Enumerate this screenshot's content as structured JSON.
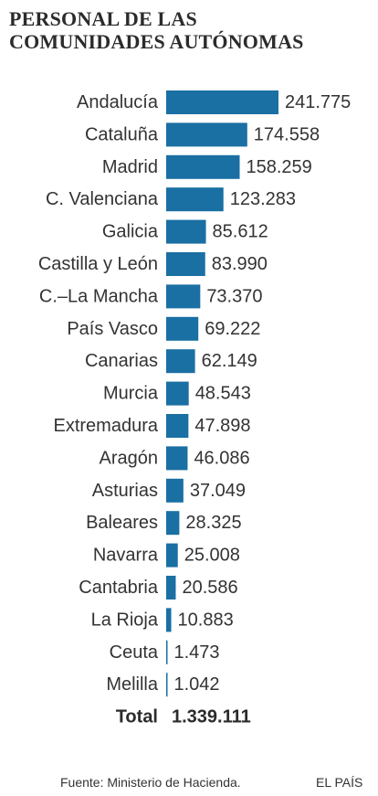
{
  "title_lines": [
    "PERSONAL DE LAS",
    "COMUNIDADES AUTÓNOMAS"
  ],
  "source": "Fuente: Ministerio de Hacienda.",
  "brand": "EL PAÍS",
  "colors": {
    "bar": "#1a6fa3",
    "text": "#333333",
    "title": "#2b2b2b"
  },
  "chart_data": {
    "type": "bar",
    "orientation": "horizontal",
    "title": "PERSONAL DE LAS COMUNIDADES AUTÓNOMAS",
    "categories": [
      "Andalucía",
      "Cataluña",
      "Madrid",
      "C. Valenciana",
      "Galicia",
      "Castilla y León",
      "C.–La Mancha",
      "País Vasco",
      "Canarias",
      "Murcia",
      "Extremadura",
      "Aragón",
      "Asturias",
      "Baleares",
      "Navarra",
      "Cantabria",
      "La Rioja",
      "Ceuta",
      "Melilla"
    ],
    "values": [
      241775,
      174558,
      158259,
      123283,
      85612,
      83990,
      73370,
      69222,
      62149,
      48543,
      47898,
      46086,
      37049,
      28325,
      25008,
      20586,
      10883,
      1473,
      1042
    ],
    "value_labels": [
      "241.775",
      "174.558",
      "158.259",
      "123.283",
      "85.612",
      "83.990",
      "73.370",
      "69.222",
      "62.149",
      "48.543",
      "47.898",
      "46.086",
      "37.049",
      "28.325",
      "25.008",
      "20.586",
      "10.883",
      "1.473",
      "1.042"
    ],
    "total_label": "Total",
    "total_value": "1.339.111",
    "xlim": [
      0,
      241775
    ],
    "grid": false,
    "legend": "none"
  }
}
